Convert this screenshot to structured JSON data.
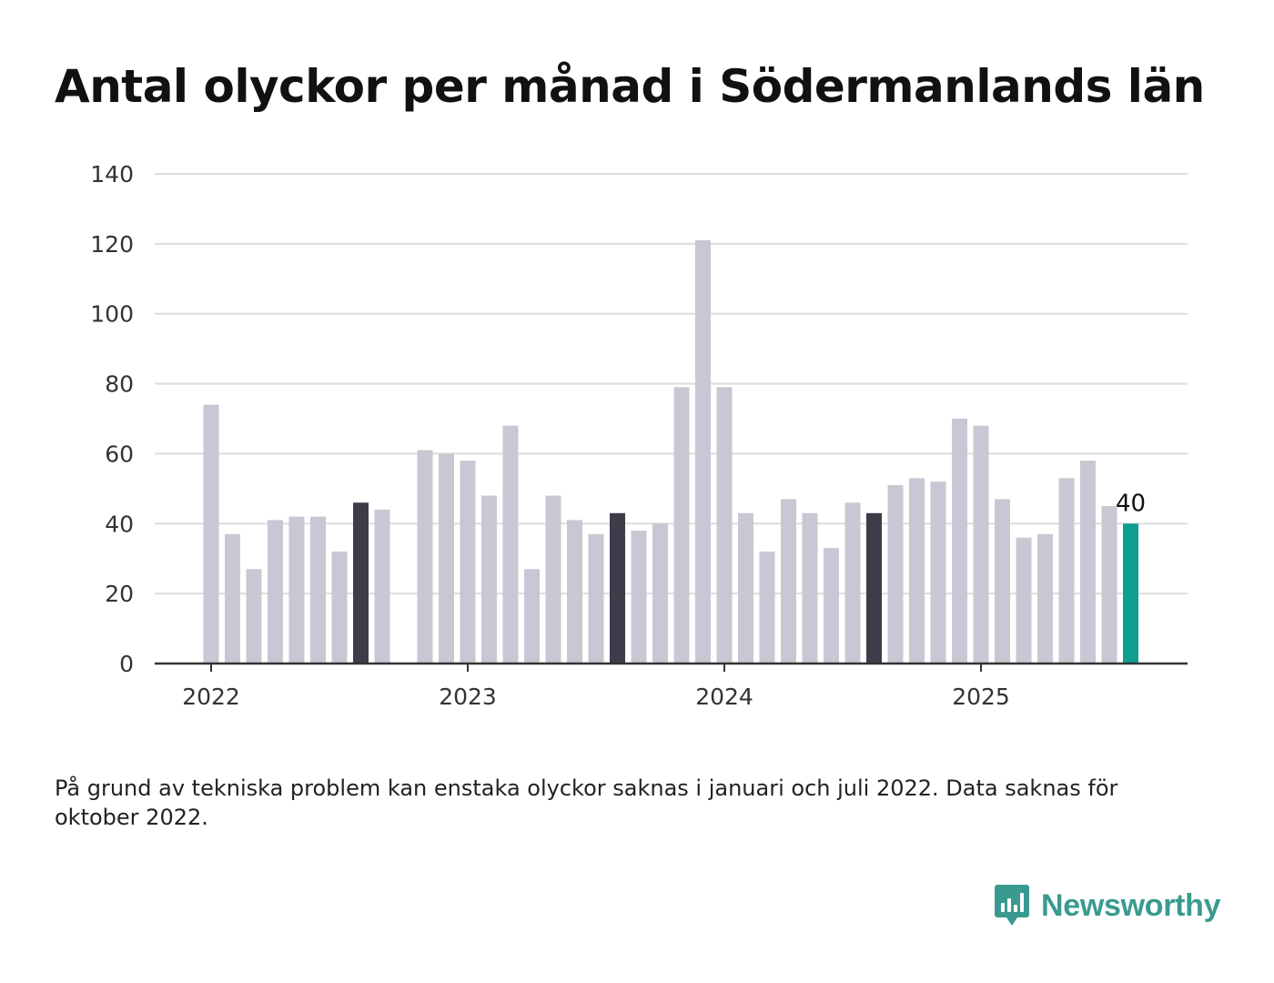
{
  "title": "Antal olyckor per månad i Södermanlands län",
  "footnote": "På grund av tekniska problem kan enstaka olyckor saknas i januari och juli 2022. Data saknas för oktober 2022.",
  "brand": {
    "name": "Newsworthy",
    "color": "#3a9a8f"
  },
  "colors": {
    "default_bar": "#c8c7d3",
    "highlight_bar": "#3d3c4b",
    "latest_bar": "#0e9e92",
    "grid": "#dddddd",
    "axis": "#333333"
  },
  "chart_data": {
    "type": "bar",
    "title": "Antal olyckor per månad i Södermanlands län",
    "xlabel": "",
    "ylabel": "",
    "ylim": [
      0,
      140
    ],
    "yticks": [
      0,
      20,
      40,
      60,
      80,
      100,
      120,
      140
    ],
    "xtick_labels": [
      {
        "label": "2022",
        "category": "2022-01"
      },
      {
        "label": "2023",
        "category": "2023-01"
      },
      {
        "label": "2024",
        "category": "2024-01"
      },
      {
        "label": "2025",
        "category": "2025-01"
      }
    ],
    "grid": true,
    "categories": [
      "2022-01",
      "2022-02",
      "2022-03",
      "2022-04",
      "2022-05",
      "2022-06",
      "2022-07",
      "2022-08",
      "2022-09",
      "2022-10",
      "2022-11",
      "2022-12",
      "2023-01",
      "2023-02",
      "2023-03",
      "2023-04",
      "2023-05",
      "2023-06",
      "2023-07",
      "2023-08",
      "2023-09",
      "2023-10",
      "2023-11",
      "2023-12",
      "2024-01",
      "2024-02",
      "2024-03",
      "2024-04",
      "2024-05",
      "2024-06",
      "2024-07",
      "2024-08",
      "2024-09",
      "2024-10",
      "2024-11",
      "2024-12",
      "2025-01",
      "2025-02",
      "2025-03",
      "2025-04",
      "2025-05",
      "2025-06",
      "2025-07",
      "2025-08"
    ],
    "values": [
      74,
      37,
      27,
      41,
      42,
      42,
      32,
      46,
      44,
      null,
      61,
      60,
      58,
      48,
      68,
      27,
      48,
      41,
      37,
      43,
      38,
      40,
      79,
      121,
      79,
      43,
      32,
      47,
      43,
      33,
      46,
      43,
      51,
      53,
      52,
      70,
      68,
      47,
      36,
      37,
      53,
      58,
      45,
      40
    ],
    "highlighted_months": [
      "2022-08",
      "2023-08",
      "2024-08"
    ],
    "latest_month": "2025-08",
    "annotations": [
      {
        "category": "2025-08",
        "text": "40"
      }
    ]
  }
}
